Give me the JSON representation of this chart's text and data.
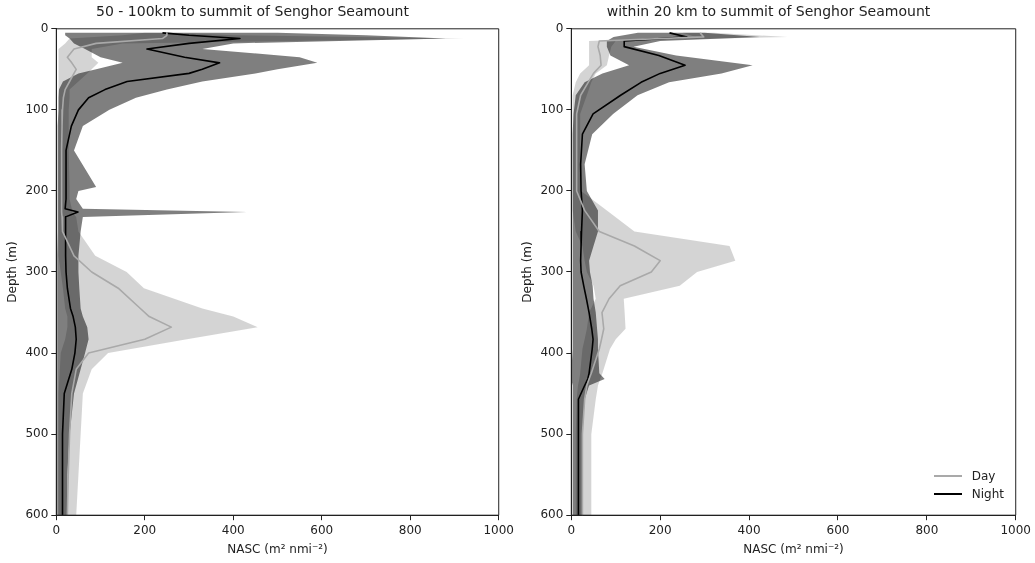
{
  "chart_data": [
    {
      "type": "line",
      "orientation": "horizontal",
      "title": "50 - 100km to summit of Senghor Seamount",
      "xlabel": "NASC (m² nmi⁻²)",
      "ylabel": "Depth (m)",
      "xlim": [
        0,
        1000
      ],
      "xticks": [
        0,
        200,
        400,
        600,
        800,
        1000
      ],
      "ylim": [
        600,
        0
      ],
      "yticks": [
        0,
        100,
        200,
        300,
        400,
        500,
        600
      ],
      "grid": false,
      "legend": false,
      "marker": "none",
      "line_style": "solid",
      "series": [
        {
          "color": "#a9a9a9",
          "x": [
            5,
            8,
            12,
            18,
            25,
            35,
            42,
            50,
            55,
            65,
            75,
            85,
            100,
            120,
            150,
            195,
            200,
            210,
            222,
            226,
            232,
            250,
            280,
            300,
            320,
            345,
            355,
            368,
            383,
            400,
            420,
            450,
            500,
            550,
            600
          ],
          "values": [
            250,
            250,
            240,
            90,
            40,
            25,
            35,
            45,
            40,
            30,
            20,
            16,
            14,
            13,
            12,
            12,
            12,
            12,
            12,
            12,
            13,
            14,
            40,
            80,
            140,
            190,
            210,
            260,
            200,
            73,
            45,
            35,
            30,
            27,
            25
          ],
          "lower": [
            200,
            150,
            30,
            20,
            5,
            5,
            5,
            5,
            5,
            5,
            5,
            5,
            5,
            5,
            5,
            5,
            5,
            5,
            5,
            5,
            5,
            5,
            5,
            10,
            15,
            20,
            25,
            25,
            20,
            10,
            8,
            5,
            5,
            5,
            5
          ],
          "upper": [
            260,
            400,
            920,
            150,
            80,
            80,
            95,
            80,
            70,
            50,
            30,
            30,
            28,
            28,
            28,
            30,
            30,
            30,
            35,
            35,
            45,
            50,
            88,
            159,
            198,
            330,
            400,
            455,
            295,
            117,
            80,
            60,
            55,
            50,
            45
          ]
        },
        {
          "color": "#000000",
          "x": [
            5,
            8,
            12,
            18,
            25,
            35,
            42,
            50,
            55,
            65,
            75,
            85,
            100,
            120,
            150,
            195,
            200,
            210,
            222,
            226,
            232,
            250,
            280,
            300,
            320,
            345,
            355,
            368,
            383,
            400,
            420,
            450,
            500,
            550,
            600
          ],
          "values": [
            240,
            300,
            415,
            300,
            205,
            290,
            369,
            330,
            300,
            160,
            110,
            73,
            50,
            34,
            22,
            22,
            22,
            22,
            20,
            49,
            21,
            21,
            21,
            22,
            25,
            32,
            38,
            43,
            45,
            42,
            35,
            18,
            14,
            14,
            14
          ],
          "lower": [
            20,
            20,
            30,
            40,
            65,
            100,
            150,
            90,
            50,
            15,
            6,
            5,
            5,
            3,
            3,
            3,
            3,
            3,
            3,
            3,
            3,
            3,
            2,
            2,
            2,
            2,
            2,
            2,
            2,
            2,
            2,
            2,
            2,
            2,
            2
          ],
          "upper": [
            500,
            700,
            880,
            400,
            330,
            550,
            590,
            500,
            450,
            330,
            250,
            180,
            120,
            60,
            40,
            90,
            50,
            45,
            60,
            431,
            60,
            55,
            50,
            50,
            52,
            55,
            60,
            70,
            73,
            65,
            55,
            40,
            30,
            25,
            25
          ]
        }
      ]
    },
    {
      "type": "line",
      "orientation": "horizontal",
      "title": "within 20 km to summit of Senghor Seamount",
      "xlabel": "NASC (m² nmi⁻²)",
      "ylabel": "Depth (m)",
      "xlim": [
        0,
        1000
      ],
      "xticks": [
        0,
        200,
        400,
        600,
        800,
        1000
      ],
      "ylim": [
        600,
        0
      ],
      "yticks": [
        0,
        100,
        200,
        300,
        400,
        500,
        600
      ],
      "grid": false,
      "legend": "bottom right",
      "marker": "none",
      "line_style": "solid",
      "series": [
        {
          "name": "Day",
          "color": "#a9a9a9",
          "x": [
            5,
            10,
            15,
            22,
            33,
            45,
            55,
            66,
            82,
            105,
            130,
            167,
            200,
            224,
            250,
            268,
            286,
            300,
            317,
            333,
            350,
            370,
            383,
            395,
            425,
            432,
            440,
            457,
            500,
            550,
            600
          ],
          "values": [
            290,
            298,
            63,
            60,
            65,
            67,
            50,
            38,
            21,
            12,
            12,
            12,
            12,
            30,
            63,
            142,
            200,
            180,
            110,
            85,
            69,
            73,
            68,
            63,
            45,
            40,
            35,
            30,
            25,
            25,
            25
          ],
          "lower": [
            250,
            280,
            40,
            40,
            40,
            40,
            20,
            10,
            3,
            3,
            3,
            3,
            3,
            3,
            10,
            25,
            30,
            35,
            50,
            55,
            40,
            35,
            30,
            25,
            20,
            18,
            15,
            12,
            10,
            10,
            10
          ],
          "upper": [
            320,
            486,
            100,
            90,
            85,
            80,
            55,
            45,
            35,
            20,
            20,
            20,
            22,
            80,
            142,
            356,
            369,
            283,
            244,
            118,
            120,
            122,
            100,
            87,
            70,
            65,
            60,
            55,
            45,
            45,
            45
          ]
        },
        {
          "name": "Night",
          "color": "#000000",
          "x": [
            5,
            10,
            15,
            22,
            33,
            45,
            55,
            66,
            82,
            105,
            130,
            167,
            200,
            224,
            250,
            268,
            286,
            300,
            317,
            333,
            350,
            370,
            383,
            395,
            425,
            432,
            440,
            457,
            500,
            550,
            600
          ],
          "values": [
            221,
            260,
            119,
            119,
            197,
            256,
            200,
            157,
            111,
            49,
            25,
            21,
            22,
            25,
            23,
            22,
            21,
            22,
            28,
            34,
            40,
            46,
            49,
            47,
            40,
            37,
            30,
            16,
            16,
            16,
            16
          ],
          "lower": [
            150,
            95,
            80,
            80,
            88,
            130,
            70,
            30,
            10,
            5,
            3,
            3,
            3,
            3,
            3,
            3,
            3,
            3,
            3,
            3,
            3,
            3,
            3,
            3,
            0,
            0,
            3,
            3,
            3,
            3,
            3
          ],
          "upper": [
            300,
            424,
            200,
            140,
            236,
            408,
            338,
            220,
            149,
            94,
            47,
            30,
            35,
            60,
            60,
            50,
            40,
            42,
            48,
            50,
            55,
            58,
            60,
            60,
            63,
            75,
            40,
            30,
            25,
            25,
            25
          ]
        }
      ]
    }
  ]
}
